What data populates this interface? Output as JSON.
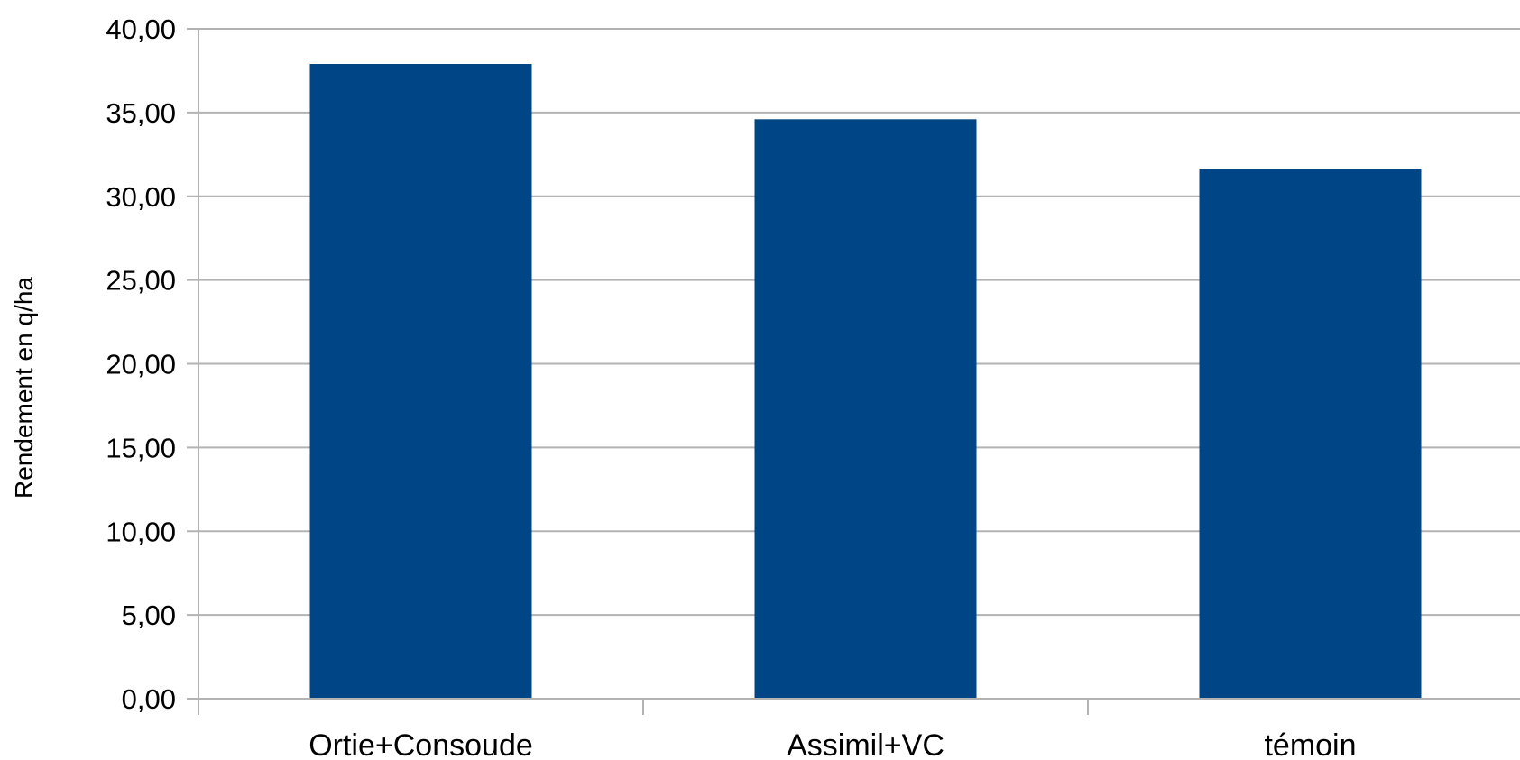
{
  "chart_data": {
    "type": "bar",
    "categories": [
      "Ortie+Consoude",
      "Assimil+VC",
      "témoin"
    ],
    "series": [
      {
        "values": [
          37.9,
          34.6,
          31.65
        ]
      }
    ],
    "ytick_labels": [
      "0,00",
      "5,00",
      "10,00",
      "15,00",
      "20,00",
      "25,00",
      "30,00",
      "35,00",
      "40,00"
    ],
    "ylabel": "Rendement en q/ha",
    "xlabel": "",
    "title": "",
    "ylim": [
      0,
      40
    ],
    "grid": "horizontal",
    "legend": "none",
    "colors": {
      "bar": "#004586",
      "grid": "#b3b3b3",
      "axis": "#b3b3b3"
    }
  }
}
